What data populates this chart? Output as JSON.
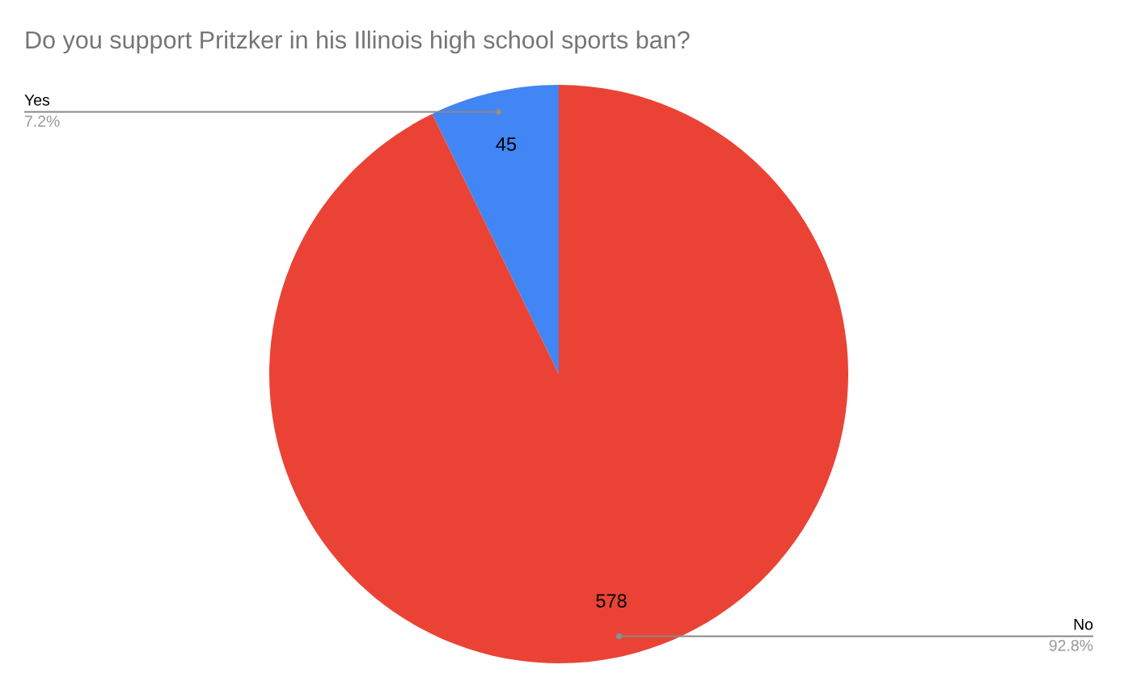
{
  "chart_data": {
    "type": "pie",
    "title": "Do you support Pritzker in his Illinois high school sports ban?",
    "categories": [
      "Yes",
      "No"
    ],
    "values": [
      7.2,
      92.8
    ],
    "colors": [
      "#4285f4",
      "#ea4335"
    ],
    "value_labels": [
      "7.2%",
      "92.8%"
    ],
    "annotations": [
      {
        "text": "45",
        "x": "Yes"
      },
      {
        "text": "578",
        "x": "No"
      }
    ]
  }
}
